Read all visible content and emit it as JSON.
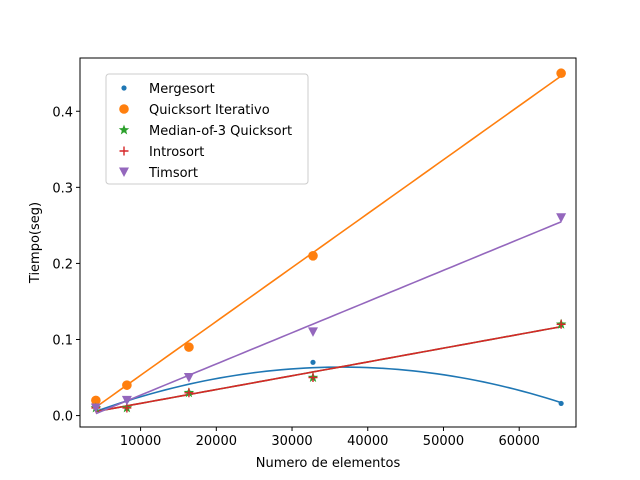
{
  "chart_data": {
    "type": "scatter",
    "xlabel": "Numero de elementos",
    "ylabel": "Tiempo(seg)",
    "xlim": [
      2000,
      67500
    ],
    "ylim": [
      -0.015,
      0.47
    ],
    "xticks": [
      10000,
      20000,
      30000,
      40000,
      50000,
      60000
    ],
    "yticks": [
      0.0,
      0.1,
      0.2,
      0.3,
      0.4
    ],
    "xtick_labels": [
      "10000",
      "20000",
      "30000",
      "40000",
      "50000",
      "60000"
    ],
    "ytick_labels": [
      "0.0",
      "0.1",
      "0.2",
      "0.3",
      "0.4"
    ],
    "grid": false,
    "legend_position": "top-left",
    "x": [
      4096,
      8192,
      16384,
      32768,
      65536
    ],
    "series": [
      {
        "name": "Mergesort",
        "marker": "point",
        "color": "#1f77b4",
        "values": [
          0.01,
          0.02,
          0.03,
          0.07,
          0.016
        ],
        "fit": "quadratic"
      },
      {
        "name": "Quicksort Iterativo",
        "marker": "circle",
        "color": "#ff7f0e",
        "values": [
          0.02,
          0.04,
          0.09,
          0.21,
          0.45
        ],
        "fit": "linear"
      },
      {
        "name": "Median-of-3 Quicksort",
        "marker": "star",
        "color": "#2ca02c",
        "values": [
          0.01,
          0.01,
          0.03,
          0.05,
          0.12
        ],
        "fit": "linear"
      },
      {
        "name": "Introsort",
        "marker": "plus",
        "color": "#d62728",
        "values": [
          0.01,
          0.01,
          0.03,
          0.05,
          0.12
        ],
        "fit": "linear"
      },
      {
        "name": "Timsort",
        "marker": "triangle-down",
        "color": "#9467bd",
        "values": [
          0.01,
          0.02,
          0.05,
          0.11,
          0.26
        ],
        "fit": "linear"
      }
    ]
  }
}
